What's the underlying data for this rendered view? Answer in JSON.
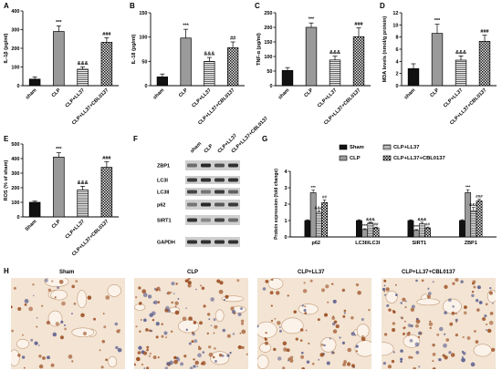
{
  "panel_letters": [
    "A",
    "B",
    "C",
    "D",
    "E",
    "F",
    "G",
    "H"
  ],
  "colors": {
    "sham": "#111111",
    "clp": "#9a9a9a",
    "ll37": "#ffffff",
    "combo": "#3c3c3c",
    "tissue_bg": "#f3e4d3",
    "tissue_stain": "#9b4e22"
  },
  "groups": [
    "sham",
    "CLP",
    "CLP+LL37",
    "CLP+LL37+CBL0137"
  ],
  "groups_e": [
    "Sham",
    "CLP",
    "CLP+LL37",
    "CLP+LL37+CBL0137"
  ],
  "chart_data": [
    {
      "panel": "A",
      "type": "bar",
      "ylabel": "IL-1β (pg/ml)",
      "ylim": [
        0,
        400
      ],
      "yticks": [
        0,
        100,
        200,
        300,
        400
      ],
      "categories": [
        "sham",
        "CLP",
        "CLP+LL37",
        "CLP+LL37+CBL0137"
      ],
      "values": [
        35,
        290,
        88,
        232
      ],
      "errors": [
        12,
        30,
        12,
        25
      ],
      "annotations": [
        "",
        "***",
        "&&&",
        "###"
      ]
    },
    {
      "panel": "B",
      "type": "bar",
      "ylabel": "IL-18 (pg/ml)",
      "ylim": [
        0,
        150
      ],
      "yticks": [
        0,
        50,
        100,
        150
      ],
      "categories": [
        "sham",
        "CLP",
        "CLP+LL37",
        "CLP+LL37+CBL0137"
      ],
      "values": [
        18,
        98,
        50,
        78
      ],
      "errors": [
        6,
        18,
        8,
        12
      ],
      "annotations": [
        "",
        "***",
        "&&&",
        "##"
      ]
    },
    {
      "panel": "C",
      "type": "bar",
      "ylabel": "TNF-α (pg/ml)",
      "ylim": [
        0,
        250
      ],
      "yticks": [
        0,
        50,
        100,
        150,
        200,
        250
      ],
      "categories": [
        "sham",
        "CLP",
        "CLP+LL37",
        "CLP+LL37+CBL0137"
      ],
      "values": [
        52,
        200,
        88,
        168
      ],
      "errors": [
        10,
        15,
        13,
        30
      ],
      "annotations": [
        "",
        "***",
        "&&&",
        "###"
      ]
    },
    {
      "panel": "D",
      "type": "bar",
      "ylabel": "MDA levels (nmol/g protein)",
      "ylim": [
        0,
        12
      ],
      "yticks": [
        0,
        2,
        4,
        6,
        8,
        10,
        12
      ],
      "categories": [
        "sham",
        "CLP",
        "CLP+LL37",
        "CLP+LL37+CBL0137"
      ],
      "values": [
        2.8,
        8.6,
        4.2,
        7.3
      ],
      "errors": [
        0.8,
        1.5,
        0.7,
        1.0
      ],
      "annotations": [
        "",
        "***",
        "&&&",
        "###"
      ]
    },
    {
      "panel": "E",
      "type": "bar",
      "ylabel": "ROS (% of sham)",
      "ylim": [
        0,
        500
      ],
      "yticks": [
        0,
        100,
        200,
        300,
        400,
        500
      ],
      "categories": [
        "Sham",
        "CLP",
        "CLP+LL37",
        "CLP+LL37+CBL0137"
      ],
      "values": [
        100,
        410,
        185,
        340
      ],
      "errors": [
        8,
        30,
        25,
        38
      ],
      "annotations": [
        "",
        "***",
        "&&&",
        "###"
      ]
    },
    {
      "panel": "G",
      "type": "bar",
      "ylabel": "Protein expression (fold change)",
      "ylim": [
        0,
        4
      ],
      "yticks": [
        0,
        1,
        2,
        3,
        4
      ],
      "categories": [
        "p62",
        "LC3II/LC3I",
        "SIRT1",
        "ZBP1"
      ],
      "series": [
        {
          "name": "Sham",
          "values": [
            1.0,
            1.0,
            1.0,
            1.0
          ],
          "errors": [
            0.05,
            0.05,
            0.05,
            0.05
          ]
        },
        {
          "name": "CLP",
          "values": [
            2.7,
            0.45,
            0.4,
            2.7
          ],
          "errors": [
            0.15,
            0.05,
            0.05,
            0.18
          ]
        },
        {
          "name": "CLP+LL37",
          "values": [
            1.5,
            0.85,
            0.8,
            1.6
          ],
          "errors": [
            0.1,
            0.05,
            0.1,
            0.2
          ]
        },
        {
          "name": "CLP+LL37+CBL0137",
          "values": [
            2.1,
            0.55,
            0.55,
            2.2
          ],
          "errors": [
            0.15,
            0.05,
            0.05,
            0.1
          ]
        }
      ],
      "annotations": [
        [
          "",
          "***",
          "&&&",
          "##"
        ],
        [
          "",
          "***",
          "&&&",
          "##"
        ],
        [
          "",
          "***",
          "&&&",
          "##"
        ],
        [
          "",
          "***",
          "&&&",
          "###"
        ]
      ],
      "legend": "top"
    }
  ],
  "blot": {
    "lane_labels": [
      "sham",
      "CLP",
      "CLP+LL37",
      "CLP+LL37+CBL0137"
    ],
    "rows": [
      {
        "label": "ZBP1",
        "intensity": [
          0.55,
          0.9,
          0.7,
          0.85
        ]
      },
      {
        "label": "LC3I",
        "intensity": [
          0.8,
          0.85,
          0.8,
          0.85
        ]
      },
      {
        "label": "LC3II",
        "intensity": [
          0.75,
          0.5,
          0.8,
          0.6
        ]
      },
      {
        "label": "p62",
        "intensity": [
          0.5,
          0.9,
          0.65,
          0.8
        ]
      },
      {
        "label": "SIRT1",
        "intensity": [
          0.85,
          0.4,
          0.75,
          0.55
        ]
      },
      {
        "label": "GAPDH",
        "intensity": [
          0.85,
          0.85,
          0.85,
          0.85
        ]
      }
    ]
  },
  "histology": {
    "labels": [
      "Sham",
      "CLP",
      "CLP+LL37",
      "CLP+LL37+CBL0137"
    ]
  }
}
